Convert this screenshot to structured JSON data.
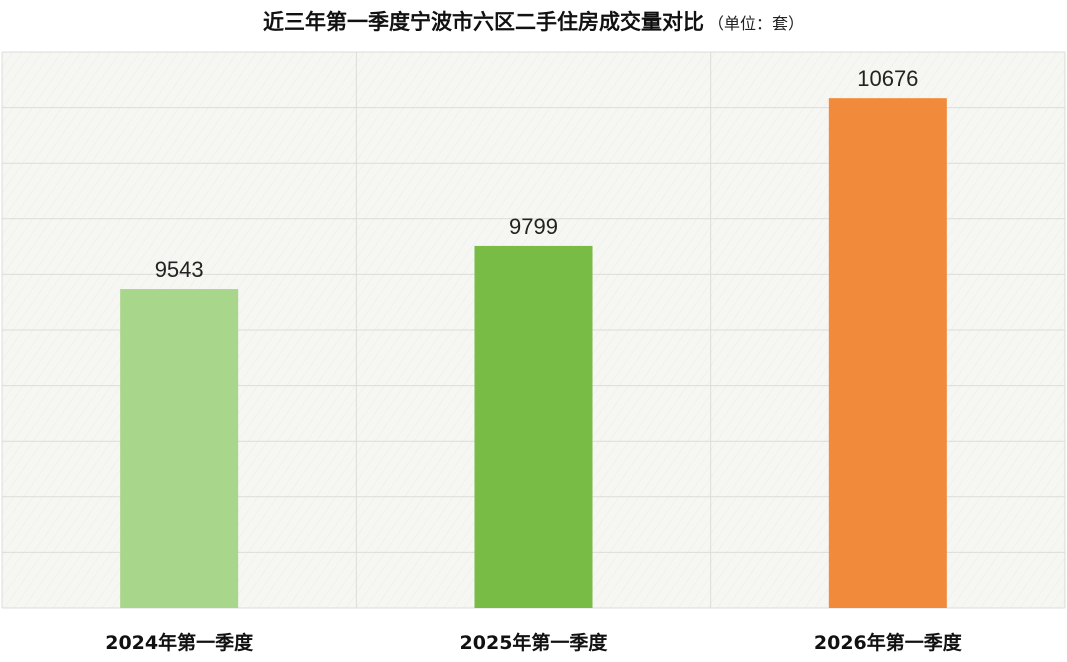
{
  "chart_data": {
    "type": "bar",
    "title": "近三年第一季度宁波市六区二手住房成交量对比",
    "unit_note": "（单位：套）",
    "categories": [
      "2024年第一季度",
      "2025年第一季度",
      "2026年第一季度"
    ],
    "values": [
      9543,
      9799,
      10676
    ],
    "value_labels": [
      "9543",
      "9799",
      "10676"
    ],
    "colors": [
      "#a8d68a",
      "#78bb45",
      "#f28a3b"
    ],
    "xlabel": "",
    "ylabel": "",
    "ylim_visual": [
      7650,
      10950
    ],
    "grid": true,
    "legend": "none"
  }
}
